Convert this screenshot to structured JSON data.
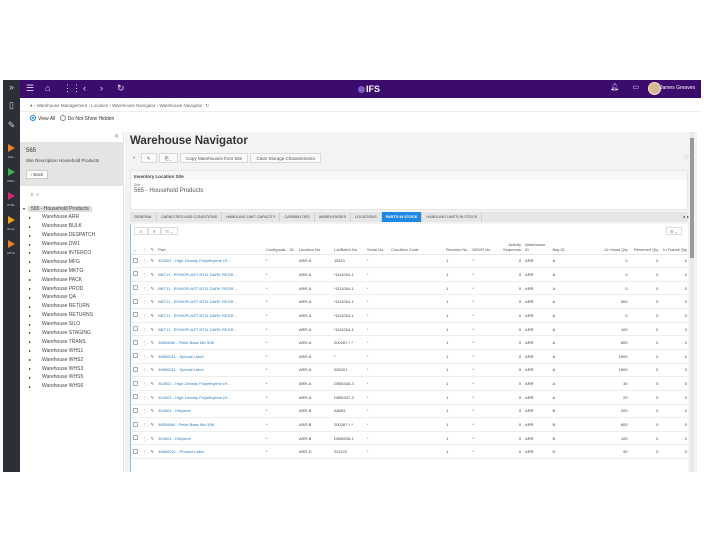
{
  "rail": {
    "items": [
      {
        "label": "SOL...",
        "color": "#f47f1e"
      },
      {
        "label": "INDU...",
        "color": "#3bb34a"
      },
      {
        "label": "INTE...",
        "color": "#d6246e"
      },
      {
        "label": "Work...",
        "color": "#f4a10e"
      },
      {
        "label": "API E...",
        "color": "#f47f1e"
      }
    ]
  },
  "topbar": {
    "brand": "IFS",
    "user_name": "James Greaves"
  },
  "breadcrumb": [
    "Warehouse Management",
    "Location",
    "Warehouse Navigator",
    "Warehouse Navigator"
  ],
  "breadcrumb_text": "Warehouse Management › Location › Warehouse Navigator › Warehouse Navigator",
  "views": {
    "view_all": "View All",
    "hide": "Do Not Show Hidden"
  },
  "left": {
    "site_code": "565",
    "site_desc": "Site Description   Household Products",
    "back_label": "‹  Back",
    "root": "565 - Household Products",
    "warehouses": [
      "Warehouse ARR",
      "Warehouse BULK",
      "Warehouse DESPATCH",
      "Warehouse DW1",
      "Warehouse INTERCO",
      "Warehouse MFG",
      "Warehouse MKTG",
      "Warehouse PACK",
      "Warehouse PROD",
      "Warehouse QA",
      "Warehouse RETURN",
      "Warehouse RETURNS",
      "Warehouse SILO",
      "Warehouse STAGING",
      "Warehouse TRANS",
      "Warehouse WHS1",
      "Warehouse WHS2",
      "Warehouse WHS3",
      "Warehouse WHS5",
      "Warehouse WHS6"
    ]
  },
  "main": {
    "title": "Warehouse Navigator",
    "toolbar": {
      "copy": "Copy Warehouses from Site",
      "clear": "Clear Storage Characteristics"
    },
    "ils": {
      "header": "Inventory Location Site",
      "site_label": "Site",
      "site_value": "565 - Household Products"
    },
    "tabs": [
      "GENERAL",
      "CAPACITIES AND CONDITIONS",
      "HANDLING UNIT CAPACITY",
      "CAPABILITIES",
      "WAREHOUSES",
      "LOCATIONS",
      "PARTS IN STOCK",
      "HANDLING UNITS IN STOCK"
    ],
    "active_tab": "PARTS IN STOCK"
  },
  "table": {
    "columns": [
      "Part",
      "Configurati... ID",
      "Location No",
      "Lot/Batch No",
      "Serial No",
      "Condition Code",
      "Revision No",
      "W/D/R No",
      "Activity Sequence",
      "Warehouse ID",
      "Bay ID",
      "On Hand Qty",
      "Reserved Qty",
      "In Transit Qty"
    ],
    "rows": [
      [
        "502602 - High-Density Polyethylene (H...",
        "*",
        "ARR-A",
        "15421",
        "*",
        "",
        "1",
        "*",
        "0",
        "ARR",
        "A",
        "0",
        "0",
        "0"
      ],
      [
        "BBT11 - RYMOPLAST BT11 DARK REGR...",
        "*",
        "ARR-A",
        "*1111004-1",
        "*",
        "",
        "1",
        "*",
        "0",
        "ARR",
        "A",
        "0",
        "0",
        "0"
      ],
      [
        "BBT11 - RYMOPLAST BT11 DARK REGR...",
        "*",
        "ARR-A",
        "*1111004-1",
        "*",
        "",
        "1",
        "*",
        "0",
        "ARR",
        "A",
        "0",
        "0",
        "0"
      ],
      [
        "BBT11 - RYMOPLAST BT11 DARK REGR...",
        "*",
        "ARR-A",
        "*1111004-1",
        "*",
        "",
        "1",
        "*",
        "0",
        "ARR",
        "A",
        "500",
        "0",
        "0"
      ],
      [
        "BBT11 - RYMOPLAST BT11 DARK REGR...",
        "*",
        "ARR-A",
        "*1111004-1",
        "*",
        "",
        "1",
        "*",
        "0",
        "ARR",
        "A",
        "0",
        "0",
        "0"
      ],
      [
        "BBT11 - RYMOPLAST BT11 DARK REGR...",
        "*",
        "ARR-A",
        "*1111004-1",
        "*",
        "",
        "1",
        "*",
        "0",
        "ARR",
        "A",
        "100",
        "0",
        "0"
      ],
      [
        "565598M - Pellet Base Mix 598",
        "*",
        "ARR-A",
        "200267-*-*",
        "*",
        "",
        "1",
        "*",
        "0",
        "ARR",
        "A",
        "800",
        "0",
        "0"
      ],
      [
        "5656001L - Special Label",
        "*",
        "ARR-A",
        "*",
        "*",
        "",
        "1",
        "*",
        "0",
        "ARR",
        "A",
        "1000",
        "0",
        "0"
      ],
      [
        "5656001L - Special Label",
        "*",
        "ARR-A",
        "095201",
        "*",
        "",
        "1",
        "*",
        "0",
        "ARR",
        "A",
        "1000",
        "0",
        "0"
      ],
      [
        "502602 - High-Density Polyethylene (H...",
        "*",
        "ARR-A",
        "D555345-3",
        "*",
        "",
        "1",
        "*",
        "0",
        "ARR",
        "A",
        "30",
        "0",
        "0"
      ],
      [
        "502602 - High-Density Polyethylene (H...",
        "*",
        "ARR-A",
        "D555347-3",
        "*",
        "",
        "1",
        "*",
        "0",
        "ARR",
        "A",
        "20",
        "0",
        "0"
      ],
      [
        "502601 - Ethylene",
        "*",
        "ARR-B",
        "A8281",
        "*",
        "",
        "1",
        "*",
        "0",
        "ARR",
        "B",
        "200",
        "0",
        "0"
      ],
      [
        "565598M - Pellet Base Mix 598",
        "*",
        "ARR-B",
        "200267-*-*",
        "*",
        "",
        "1",
        "*",
        "0",
        "ARR",
        "B",
        "800",
        "0",
        "0"
      ],
      [
        "502601 - Ethylene",
        "*",
        "ARR-B",
        "D555535-1",
        "*",
        "",
        "1",
        "*",
        "0",
        "ARR",
        "B",
        "100",
        "0",
        "0"
      ],
      [
        "5656002L - Product Label",
        "*",
        "ARR-D",
        "221122",
        "*",
        "",
        "1",
        "*",
        "0",
        "ARR",
        "D",
        "90",
        "0",
        "0"
      ]
    ]
  }
}
